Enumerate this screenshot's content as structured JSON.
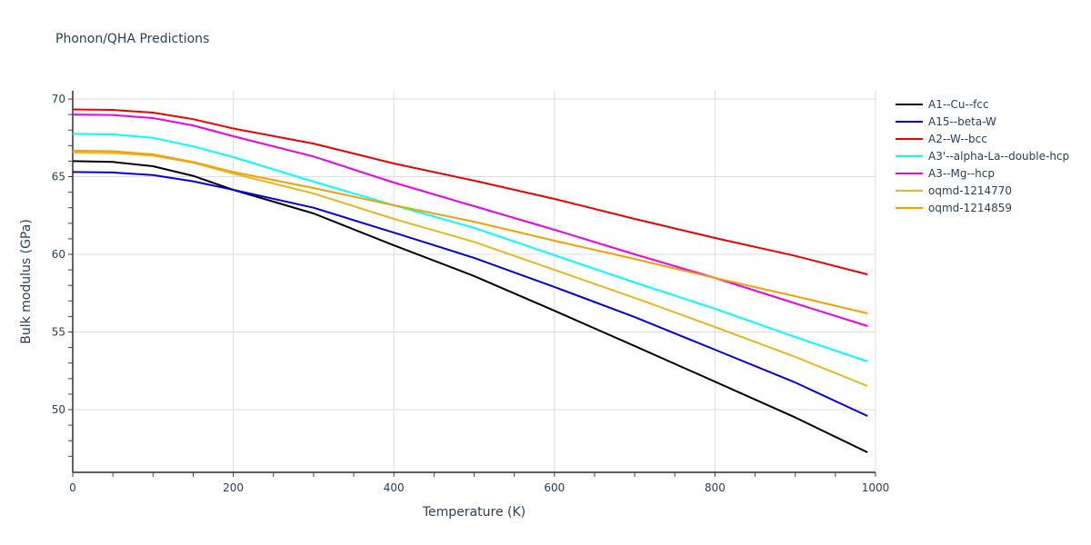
{
  "title": "Phonon/QHA Predictions",
  "chart_data": {
    "type": "line",
    "title": "Phonon/QHA Predictions",
    "xlabel": "Temperature (K)",
    "ylabel": "Bulk modulus (GPa)",
    "xlim": [
      0,
      1000
    ],
    "ylim": [
      46,
      70.5
    ],
    "xticks": [
      0,
      200,
      400,
      600,
      800,
      1000
    ],
    "yticks": [
      50,
      55,
      60,
      65,
      70
    ],
    "grid": true,
    "legend_position": "right",
    "x": [
      0,
      50,
      100,
      150,
      200,
      300,
      400,
      500,
      600,
      700,
      800,
      900,
      990
    ],
    "series": [
      {
        "name": "A1--Cu--fcc",
        "color": "#000000",
        "values": [
          66.0,
          65.95,
          65.67,
          65.05,
          64.15,
          62.63,
          60.58,
          58.6,
          56.37,
          54.1,
          51.8,
          49.5,
          47.25
        ]
      },
      {
        "name": "A15--beta-W",
        "color": "#0000ee",
        "values": [
          65.3,
          65.27,
          65.1,
          64.7,
          64.15,
          63.0,
          61.4,
          59.77,
          57.9,
          55.96,
          53.86,
          51.75,
          49.59
        ]
      },
      {
        "name": "A2--W--bcc",
        "color": "#ee0000",
        "values": [
          69.33,
          69.3,
          69.12,
          68.7,
          68.1,
          67.13,
          65.85,
          64.74,
          63.57,
          62.28,
          61.05,
          59.9,
          58.71
        ]
      },
      {
        "name": "A3'--alpha-La--double-hcp",
        "color": "#00ffff",
        "values": [
          67.75,
          67.72,
          67.5,
          66.95,
          66.26,
          64.68,
          63.16,
          61.7,
          59.94,
          58.19,
          56.5,
          54.67,
          53.1
        ]
      },
      {
        "name": "A3--Mg--hcp",
        "color": "#ee00ee",
        "values": [
          69.0,
          68.97,
          68.77,
          68.3,
          67.6,
          66.3,
          64.62,
          63.1,
          61.58,
          60.0,
          58.48,
          56.84,
          55.38
        ]
      },
      {
        "name": "oqmd-1214770",
        "color": "#e8b820",
        "values": [
          66.55,
          66.52,
          66.35,
          65.9,
          65.2,
          63.92,
          62.28,
          60.8,
          59.0,
          57.2,
          55.32,
          53.4,
          51.52
        ]
      },
      {
        "name": "oqmd-1214859",
        "color": "#f5a000",
        "values": [
          66.67,
          66.64,
          66.43,
          65.95,
          65.3,
          64.27,
          63.16,
          62.1,
          60.88,
          59.7,
          58.48,
          57.3,
          56.2
        ]
      }
    ]
  }
}
